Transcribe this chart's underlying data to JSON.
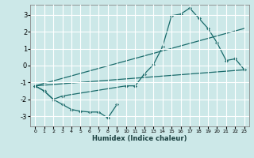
{
  "background_color": "#cce8e8",
  "grid_color": "#ffffff",
  "line_color": "#1a6b6b",
  "xlabel": "Humidex (Indice chaleur)",
  "xlim": [
    -0.5,
    23.5
  ],
  "ylim": [
    -3.6,
    3.6
  ],
  "yticks": [
    -3,
    -2,
    -1,
    0,
    1,
    2,
    3
  ],
  "xticks": [
    0,
    1,
    2,
    3,
    4,
    5,
    6,
    7,
    8,
    9,
    10,
    11,
    12,
    13,
    14,
    15,
    16,
    17,
    18,
    19,
    20,
    21,
    22,
    23
  ],
  "curves": [
    {
      "x": [
        0,
        1,
        2,
        3,
        4,
        5,
        6,
        7,
        8,
        9
      ],
      "y": [
        -1.2,
        -1.5,
        -2.0,
        -2.3,
        -2.6,
        -2.7,
        -2.75,
        -2.75,
        -3.1,
        -2.3
      ],
      "marker": true
    },
    {
      "x": [
        0,
        1,
        2,
        3,
        10,
        11,
        12,
        13,
        14,
        15,
        16,
        17,
        18,
        19,
        20,
        21,
        22,
        23
      ],
      "y": [
        -1.2,
        -1.5,
        -2.0,
        -1.8,
        -1.2,
        -1.2,
        -0.5,
        0.05,
        1.1,
        2.95,
        3.05,
        3.4,
        2.8,
        2.2,
        1.35,
        0.3,
        0.4,
        -0.25
      ],
      "marker": true
    },
    {
      "x": [
        0,
        23
      ],
      "y": [
        -1.2,
        -0.25
      ],
      "marker": false
    },
    {
      "x": [
        0,
        23
      ],
      "y": [
        -1.2,
        2.2
      ],
      "marker": false
    }
  ]
}
